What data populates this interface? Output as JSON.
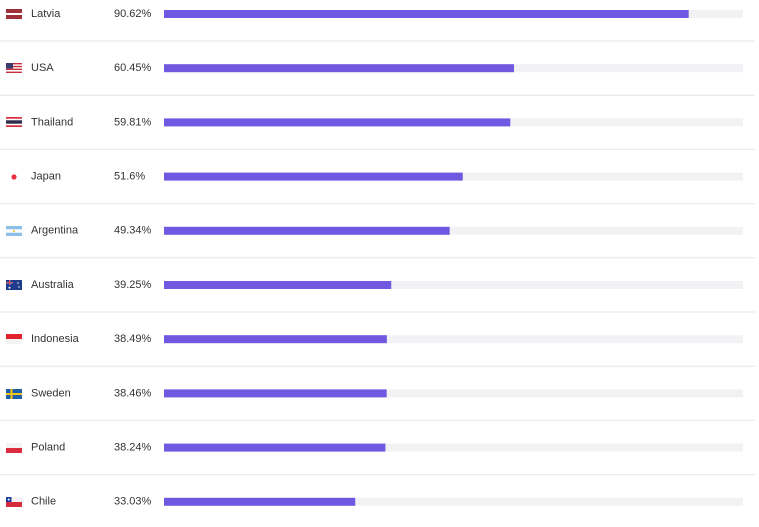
{
  "chart_data": {
    "type": "bar",
    "orientation": "horizontal",
    "categories": [
      "Latvia",
      "USA",
      "Thailand",
      "Japan",
      "Argentina",
      "Australia",
      "Indonesia",
      "Sweden",
      "Poland",
      "Chile"
    ],
    "values": [
      90.62,
      60.45,
      59.81,
      51.6,
      49.34,
      39.25,
      38.49,
      38.46,
      38.24,
      33.03
    ],
    "value_labels": [
      "90.62%",
      "60.45%",
      "59.81%",
      "51.6%",
      "49.34%",
      "39.25%",
      "38.49%",
      "38.46%",
      "38.24%",
      "33.03%"
    ],
    "color": "#7059e0",
    "xlim": [
      0,
      100
    ]
  }
}
